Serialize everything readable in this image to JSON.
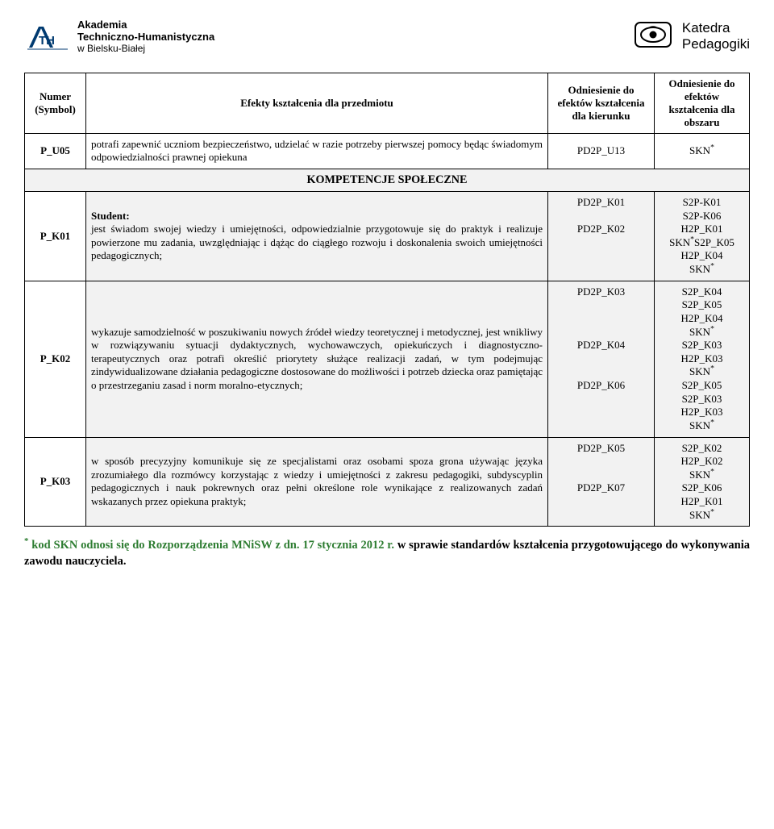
{
  "header": {
    "left": {
      "line1": "Akademia",
      "line2": "Techniczno-Humanistyczna",
      "line3": "w Bielsku-Białej"
    },
    "right": {
      "line1": "Katedra",
      "line2": "Pedagogiki"
    }
  },
  "table": {
    "headers": {
      "col1_a": "Numer",
      "col1_b": "(Symbol)",
      "col2": "Efekty kształcenia dla przedmiotu",
      "col3": "Odniesienie do efektów kształcenia dla kierunku",
      "col4": "Odniesienie do efektów kształcenia dla obszaru"
    },
    "row_u05": {
      "sym": "P_U05",
      "desc": "potrafi zapewnić uczniom bezpieczeństwo, udzielać w razie potrzeby pierwszej pomocy będąc świadomym odpowiedzialności prawnej opiekuna",
      "col3": [
        "PD2P_U13"
      ],
      "col4": [
        "SKN<sup>*</sup>"
      ]
    },
    "komp_header": "KOMPETENCJE SPOŁECZNE",
    "row_k01": {
      "sym": "P_K01",
      "desc": "<b>Student:</b><br>jest świadom swojej wiedzy i umiejętności, odpowiedzialnie przygotowuje się do praktyk i realizuje powierzone mu zadania, uwzględniając i dążąc do ciągłego rozwoju i doskonalenia swoich umiejętności pedagogicznych;",
      "col3": [
        "PD2P_K01",
        "",
        "PD2P_K02"
      ],
      "col4": [
        "S2P-K01",
        "S2P-K06",
        "H2P_K01",
        "SKN<sup>*</sup>S2P_K05",
        "H2P_K04",
        "SKN<sup>*</sup>"
      ]
    },
    "row_k02": {
      "sym": "P_K02",
      "desc": "wykazuje samodzielność w poszukiwaniu nowych źródeł wiedzy teoretycznej i metodycznej, jest wnikliwy w rozwiązywaniu sytuacji dydaktycznych, wychowawczych, opiekuńczych i diagnostyczno-terapeutycznych oraz potrafi określić priorytety służące realizacji zadań, w tym podejmując zindywidualizowane działania pedagogiczne dostosowane do możliwości i potrzeb dziecka oraz pamiętając o przestrzeganiu zasad i norm moralno-etycznych;",
      "col3": [
        "PD2P_K03",
        "",
        "",
        "",
        "PD2P_K04",
        "",
        "",
        "PD2P_K06"
      ],
      "col4": [
        "S2P_K04",
        "S2P_K05",
        "H2P_K04",
        "SKN<sup>*</sup>",
        "S2P_K03",
        "H2P_K03",
        "SKN<sup>*</sup>",
        "S2P_K05",
        "S2P_K03",
        "H2P_K03",
        "SKN<sup>*</sup>"
      ]
    },
    "row_k03": {
      "sym": "P_K03",
      "desc": "w sposób precyzyjny komunikuje się ze specjalistami oraz osobami spoza grona używając języka zrozumiałego dla rozmówcy korzystając z wiedzy i umiejętności z zakresu pedagogiki, subdyscyplin pedagogicznych i nauk pokrewnych oraz pełni określone role wynikające z realizowanych zadań wskazanych przez opiekuna praktyk;",
      "col3": [
        "PD2P_K05",
        "",
        "",
        "PD2P_K07"
      ],
      "col4": [
        "S2P_K02",
        "H2P_K02",
        "SKN<sup>*</sup>",
        "S2P_K06",
        "H2P_K01",
        "SKN<sup>*</sup>"
      ]
    }
  },
  "footnote": {
    "green_part": "<sup>*</sup> kod SKN odnosi się do Rozporządzenia MNiSW z dn. 17 stycznia 2012 r.",
    "black_part": " w sprawie standardów kształcenia przygotowującego do wykonywania zawodu nauczyciela."
  }
}
